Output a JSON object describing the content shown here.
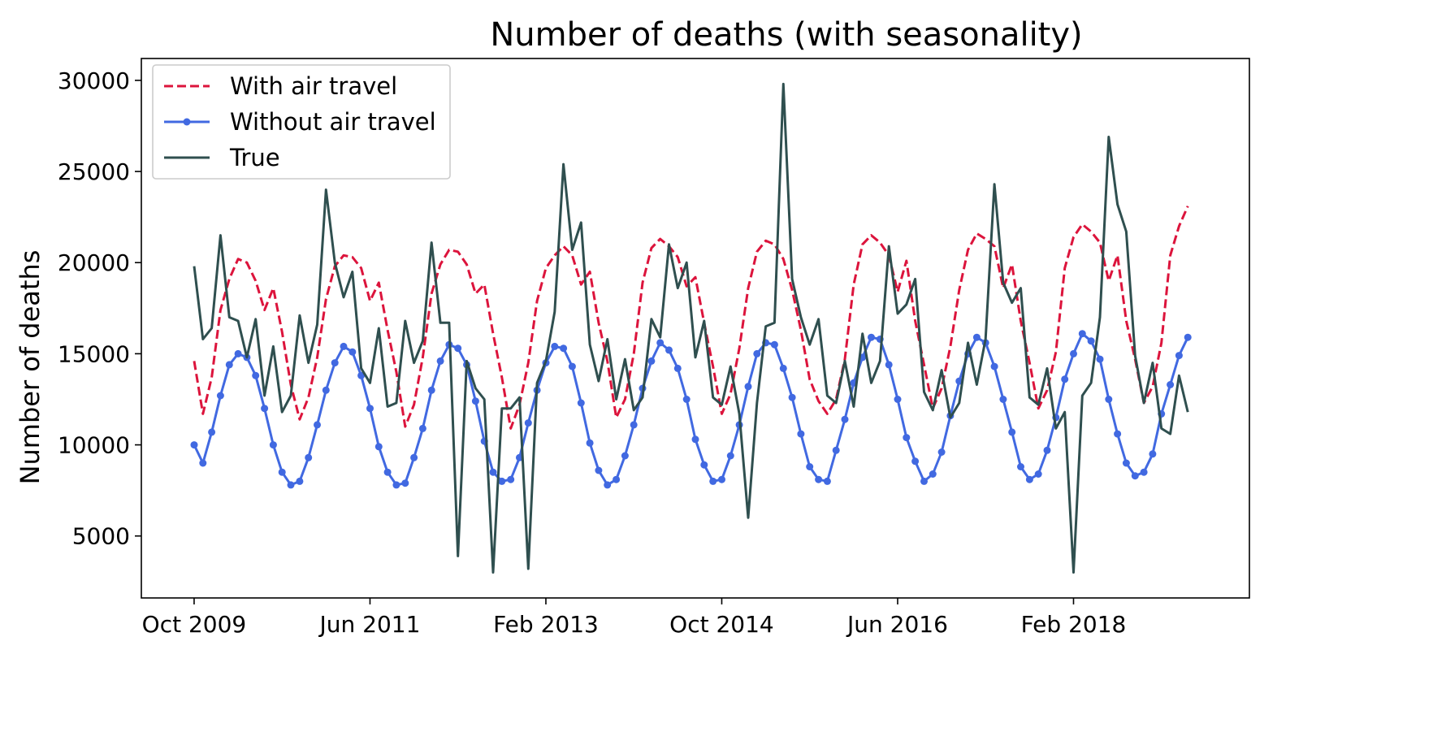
{
  "chart_data": {
    "type": "line",
    "title": "Number of deaths (with seasonality)",
    "xlabel": "",
    "ylabel": "Number of deaths",
    "x_start": "Oct 2009",
    "x_frequency": "monthly",
    "x_ticks": [
      "Oct 2009",
      "Jun 2011",
      "Feb 2013",
      "Oct 2014",
      "Jun 2016",
      "Feb 2018"
    ],
    "xlim": [
      "Apr 2009",
      "Oct 2019"
    ],
    "y_ticks": [
      5000,
      10000,
      15000,
      20000,
      25000,
      30000
    ],
    "ylim": [
      1600,
      31200
    ],
    "grid": false,
    "legend_position": "upper-left",
    "series": [
      {
        "name": "With air travel",
        "color": "#dc143c",
        "style": "dashed",
        "marker": "none",
        "values": [
          14600,
          11700,
          13700,
          17400,
          19100,
          20200,
          20000,
          19000,
          17400,
          18600,
          16200,
          13300,
          11400,
          12600,
          14800,
          18000,
          19800,
          20400,
          20300,
          19700,
          17900,
          18900,
          16300,
          14000,
          11000,
          12200,
          14800,
          18300,
          19900,
          20700,
          20600,
          19900,
          18300,
          18800,
          16100,
          13700,
          10900,
          12200,
          14500,
          17900,
          19700,
          20400,
          20900,
          20400,
          18800,
          19500,
          16700,
          14600,
          11500,
          12500,
          15000,
          18900,
          20800,
          21300,
          20900,
          20300,
          18700,
          19200,
          16700,
          14300,
          11700,
          12800,
          15300,
          18600,
          20600,
          21200,
          21000,
          20200,
          18500,
          16300,
          13600,
          12400,
          11700,
          12500,
          14700,
          18800,
          21000,
          21500,
          21100,
          20400,
          18400,
          20100,
          16800,
          14400,
          12000,
          13100,
          15400,
          18500,
          20700,
          21600,
          21300,
          20900,
          18600,
          19900,
          16800,
          14500,
          12000,
          13000,
          15100,
          19700,
          21400,
          22100,
          21700,
          21100,
          19000,
          20400,
          16800,
          14700,
          12300,
          13200,
          15600,
          20400,
          22000,
          23100
        ]
      },
      {
        "name": "Without air travel",
        "color": "#4169e1",
        "style": "solid",
        "marker": "dot",
        "values": [
          10000,
          9000,
          10700,
          12700,
          14400,
          15000,
          14800,
          13800,
          12000,
          10000,
          8500,
          7800,
          8000,
          9300,
          11100,
          13000,
          14500,
          15400,
          15100,
          13800,
          12000,
          9900,
          8500,
          7800,
          7900,
          9300,
          10900,
          13000,
          14600,
          15500,
          15300,
          14400,
          12400,
          10200,
          8500,
          8000,
          8100,
          9300,
          11200,
          13000,
          14500,
          15400,
          15300,
          14300,
          12300,
          10100,
          8600,
          7800,
          8100,
          9400,
          11100,
          13100,
          14600,
          15600,
          15200,
          14200,
          12500,
          10300,
          8900,
          8000,
          8100,
          9400,
          11100,
          13200,
          15000,
          15600,
          15500,
          14200,
          12600,
          10600,
          8800,
          8100,
          8000,
          9700,
          11400,
          13400,
          14800,
          15900,
          15800,
          14400,
          12500,
          10400,
          9100,
          8000,
          8400,
          9600,
          11600,
          13500,
          15000,
          15900,
          15600,
          14300,
          12500,
          10700,
          8800,
          8100,
          8400,
          9700,
          11500,
          13600,
          15000,
          16100,
          15700,
          14700,
          12500,
          10600,
          9000,
          8300,
          8500,
          9500,
          11700,
          13300,
          14900,
          15900
        ]
      },
      {
        "name": "True",
        "color": "#2f4f4f",
        "style": "solid",
        "marker": "none",
        "values": [
          19800,
          15800,
          16400,
          21500,
          17000,
          16800,
          14800,
          16900,
          12700,
          15400,
          11800,
          12700,
          17100,
          14500,
          16600,
          24000,
          20000,
          18100,
          19500,
          14200,
          13400,
          16400,
          12100,
          12300,
          16800,
          14500,
          15700,
          21100,
          16700,
          16700,
          3900,
          14600,
          13100,
          12500,
          3000,
          12000,
          12000,
          12600,
          3200,
          13400,
          14600,
          17300,
          25400,
          20700,
          22200,
          15500,
          13500,
          15800,
          12500,
          14700,
          11900,
          12600,
          16900,
          15900,
          21000,
          18600,
          20000,
          14800,
          16800,
          12600,
          12200,
          14300,
          11700,
          6000,
          12300,
          16500,
          16700,
          29800,
          19100,
          17000,
          15500,
          16900,
          12700,
          12300,
          14600,
          12100,
          16100,
          13400,
          14600,
          20900,
          17200,
          17700,
          19100,
          12900,
          11900,
          14100,
          11500,
          12300,
          15600,
          13300,
          15800,
          24300,
          18900,
          17800,
          18600,
          12600,
          12200,
          14200,
          10900,
          11800,
          3000,
          12700,
          13400,
          17000,
          26900,
          23200,
          21700,
          14900,
          12300,
          14500,
          10900,
          10600,
          13800,
          11800
        ]
      }
    ]
  }
}
